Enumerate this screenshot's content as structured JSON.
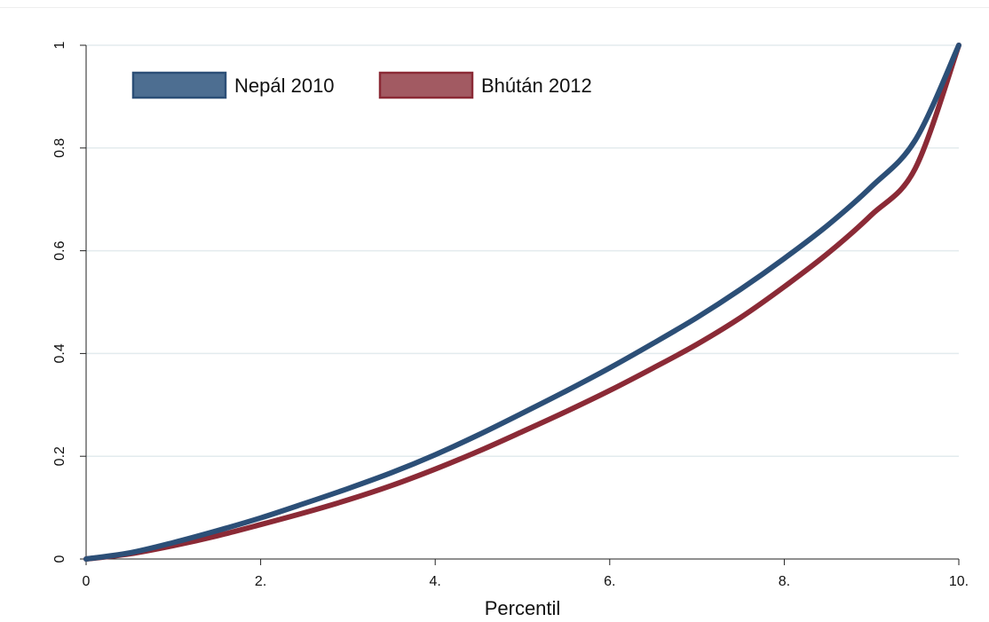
{
  "chart_data": {
    "type": "line",
    "title": "",
    "xlabel": "Percentil",
    "ylabel": "",
    "xlim": [
      0,
      10
    ],
    "ylim": [
      0,
      1
    ],
    "grid": true,
    "legend_position": "top-left",
    "x_ticks": [
      {
        "value": 0,
        "label": "0"
      },
      {
        "value": 2,
        "label": "2."
      },
      {
        "value": 4,
        "label": "4."
      },
      {
        "value": 6,
        "label": "6."
      },
      {
        "value": 8,
        "label": "8."
      },
      {
        "value": 10,
        "label": "10."
      }
    ],
    "y_ticks": [
      {
        "value": 0,
        "label": "0"
      },
      {
        "value": 0.2,
        "label": "0.2"
      },
      {
        "value": 0.4,
        "label": "0.4"
      },
      {
        "value": 0.6,
        "label": "0.6"
      },
      {
        "value": 0.8,
        "label": "0.8"
      },
      {
        "value": 1,
        "label": "1"
      }
    ],
    "series": [
      {
        "name": "Nepál 2010",
        "color": "#2c4f77",
        "fill_color": "#4d6e91",
        "x": [
          0,
          0.5,
          1,
          1.5,
          2,
          2.5,
          3,
          3.5,
          4,
          4.5,
          5,
          5.5,
          6,
          6.5,
          7,
          7.5,
          8,
          8.5,
          9,
          9.5,
          10
        ],
        "y": [
          0,
          0.012,
          0.032,
          0.055,
          0.08,
          0.108,
          0.137,
          0.168,
          0.203,
          0.242,
          0.284,
          0.327,
          0.372,
          0.42,
          0.47,
          0.525,
          0.585,
          0.65,
          0.725,
          0.815,
          1
        ]
      },
      {
        "name": "Bhútán 2012",
        "color": "#8b2a36",
        "fill_color": "#a25a62",
        "x": [
          0,
          0.5,
          1,
          1.5,
          2,
          2.5,
          3,
          3.5,
          4,
          4.5,
          5,
          5.5,
          6,
          6.5,
          7,
          7.5,
          8,
          8.5,
          9,
          9.5,
          10
        ],
        "y": [
          0,
          0.01,
          0.026,
          0.045,
          0.067,
          0.09,
          0.115,
          0.143,
          0.175,
          0.21,
          0.248,
          0.287,
          0.328,
          0.372,
          0.418,
          0.47,
          0.53,
          0.595,
          0.67,
          0.76,
          1
        ]
      }
    ]
  }
}
